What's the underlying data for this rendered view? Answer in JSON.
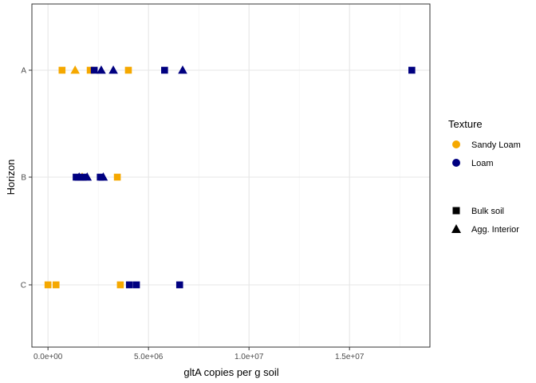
{
  "chart_data": {
    "type": "scatter",
    "title": "",
    "xlabel": "gltA copies per g soil",
    "ylabel": "Horizon",
    "categories": [
      "C",
      "B",
      "A"
    ],
    "xlim": [
      -800000,
      19000000
    ],
    "x_ticks": [
      0,
      5000000,
      10000000,
      15000000
    ],
    "x_tick_labels": [
      "0.0e+00",
      "5.0e+06",
      "1.0e+07",
      "1.5e+07"
    ],
    "grid": true,
    "legend_position": "right",
    "colors": {
      "Sandy Loam": "#f5a800",
      "Loam": "#000080"
    },
    "legend": {
      "color_title": "Texture",
      "color_entries": [
        "Sandy Loam",
        "Loam"
      ],
      "shape_entries": [
        "Bulk soil",
        "Agg. Interior"
      ]
    },
    "points": [
      {
        "horizon": "A",
        "x": 700000,
        "texture": "Sandy Loam",
        "sample": "Bulk soil"
      },
      {
        "horizon": "A",
        "x": 2100000,
        "texture": "Sandy Loam",
        "sample": "Bulk soil"
      },
      {
        "horizon": "A",
        "x": 4000000,
        "texture": "Sandy Loam",
        "sample": "Bulk soil"
      },
      {
        "horizon": "A",
        "x": 1350000,
        "texture": "Sandy Loam",
        "sample": "Agg. Interior"
      },
      {
        "horizon": "A",
        "x": 2300000,
        "texture": "Loam",
        "sample": "Bulk soil"
      },
      {
        "horizon": "A",
        "x": 5800000,
        "texture": "Loam",
        "sample": "Bulk soil"
      },
      {
        "horizon": "A",
        "x": 18100000,
        "texture": "Loam",
        "sample": "Bulk soil"
      },
      {
        "horizon": "A",
        "x": 2650000,
        "texture": "Loam",
        "sample": "Agg. Interior"
      },
      {
        "horizon": "A",
        "x": 3250000,
        "texture": "Loam",
        "sample": "Agg. Interior"
      },
      {
        "horizon": "A",
        "x": 6700000,
        "texture": "Loam",
        "sample": "Agg. Interior"
      },
      {
        "horizon": "B",
        "x": 3450000,
        "texture": "Sandy Loam",
        "sample": "Bulk soil"
      },
      {
        "horizon": "B",
        "x": 1700000,
        "texture": "Sandy Loam",
        "sample": "Agg. Interior"
      },
      {
        "horizon": "B",
        "x": 1400000,
        "texture": "Loam",
        "sample": "Bulk soil"
      },
      {
        "horizon": "B",
        "x": 1750000,
        "texture": "Loam",
        "sample": "Bulk soil"
      },
      {
        "horizon": "B",
        "x": 2600000,
        "texture": "Loam",
        "sample": "Bulk soil"
      },
      {
        "horizon": "B",
        "x": 1550000,
        "texture": "Loam",
        "sample": "Agg. Interior"
      },
      {
        "horizon": "B",
        "x": 1950000,
        "texture": "Loam",
        "sample": "Agg. Interior"
      },
      {
        "horizon": "B",
        "x": 2750000,
        "texture": "Loam",
        "sample": "Agg. Interior"
      },
      {
        "horizon": "C",
        "x": 0,
        "texture": "Sandy Loam",
        "sample": "Bulk soil"
      },
      {
        "horizon": "C",
        "x": 400000,
        "texture": "Sandy Loam",
        "sample": "Bulk soil"
      },
      {
        "horizon": "C",
        "x": 3600000,
        "texture": "Sandy Loam",
        "sample": "Bulk soil"
      },
      {
        "horizon": "C",
        "x": 4050000,
        "texture": "Loam",
        "sample": "Bulk soil"
      },
      {
        "horizon": "C",
        "x": 4400000,
        "texture": "Loam",
        "sample": "Bulk soil"
      },
      {
        "horizon": "C",
        "x": 6550000,
        "texture": "Loam",
        "sample": "Bulk soil"
      }
    ]
  }
}
